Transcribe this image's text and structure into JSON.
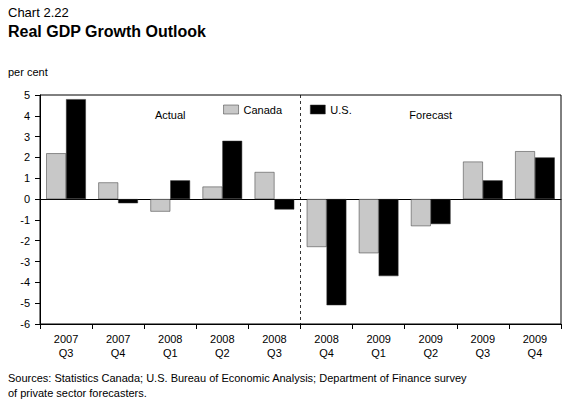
{
  "chart_data": {
    "type": "bar",
    "chart_label": "Chart 2.22",
    "title": "Real GDP Growth Outlook",
    "y_label": "per cent",
    "categories": [
      "2007\nQ3",
      "2007\nQ4",
      "2008\nQ1",
      "2008\nQ2",
      "2008\nQ3",
      "2008\nQ4",
      "2009\nQ1",
      "2009\nQ2",
      "2009\nQ3",
      "2009\nQ4"
    ],
    "series": [
      {
        "name": "Canada",
        "color": "#c8c8c8",
        "values": [
          2.2,
          0.8,
          -0.6,
          0.6,
          1.3,
          -2.3,
          -2.6,
          -1.3,
          1.8,
          2.3
        ]
      },
      {
        "name": "U.S.",
        "color": "#000000",
        "values": [
          4.8,
          -0.2,
          0.9,
          2.8,
          -0.5,
          -5.1,
          -3.7,
          -1.2,
          0.9,
          2.0
        ]
      }
    ],
    "ylim": [
      -6,
      5
    ],
    "yticks": [
      -6,
      -5,
      -4,
      -3,
      -2,
      -1,
      0,
      1,
      2,
      3,
      4,
      5
    ],
    "grid": false,
    "legend": "top",
    "annotations": {
      "before": "Actual",
      "after": "Forecast",
      "forecast_start": "2008\nQ4"
    },
    "source": "Sources: Statistics Canada; U.S. Bureau of Economic Analysis; Department of Finance survey\nof private sector forecasters."
  }
}
